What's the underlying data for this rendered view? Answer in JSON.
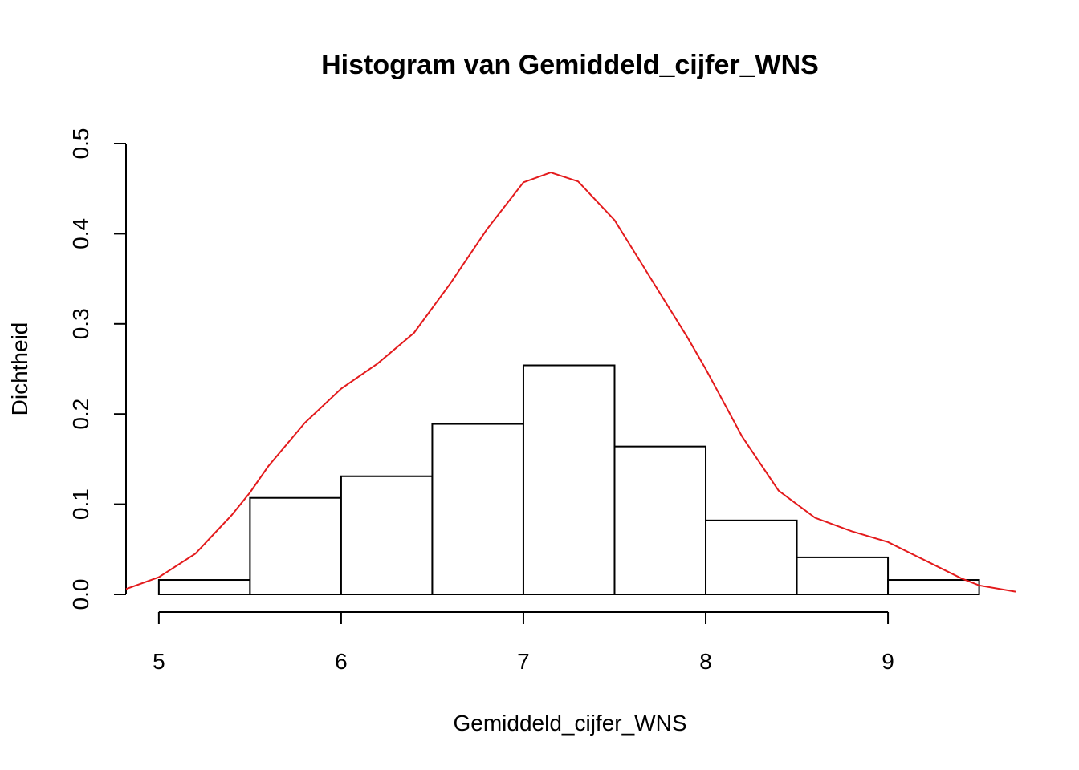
{
  "chart_data": {
    "type": "bar",
    "title": "Histogram van Gemiddeld_cijfer_WNS",
    "xlabel": "Gemiddeld_cijfer_WNS",
    "ylabel": "Dichtheid",
    "xlim": [
      4.82,
      9.7
    ],
    "ylim": [
      0,
      0.5
    ],
    "x_ticks": [
      5,
      6,
      7,
      8,
      9
    ],
    "y_ticks": [
      0.0,
      0.1,
      0.2,
      0.3,
      0.4,
      0.5
    ],
    "x_tick_labels": [
      "5",
      "6",
      "7",
      "8",
      "9"
    ],
    "y_tick_labels": [
      "0.0",
      "0.1",
      "0.2",
      "0.3",
      "0.4",
      "0.5"
    ],
    "bins": [
      {
        "from": 5.0,
        "to": 5.5,
        "density": 0.016
      },
      {
        "from": 5.5,
        "to": 6.0,
        "density": 0.107
      },
      {
        "from": 6.0,
        "to": 6.5,
        "density": 0.131
      },
      {
        "from": 6.5,
        "to": 7.0,
        "density": 0.189
      },
      {
        "from": 7.0,
        "to": 7.5,
        "density": 0.254
      },
      {
        "from": 7.5,
        "to": 8.0,
        "density": 0.164
      },
      {
        "from": 8.0,
        "to": 8.5,
        "density": 0.082
      },
      {
        "from": 8.5,
        "to": 9.0,
        "density": 0.041
      },
      {
        "from": 9.0,
        "to": 9.5,
        "density": 0.016
      }
    ],
    "density_curve": {
      "color": "#e31a1c",
      "points": [
        [
          4.82,
          0.006
        ],
        [
          5.0,
          0.019
        ],
        [
          5.2,
          0.045
        ],
        [
          5.4,
          0.088
        ],
        [
          5.5,
          0.113
        ],
        [
          5.6,
          0.142
        ],
        [
          5.8,
          0.19
        ],
        [
          6.0,
          0.228
        ],
        [
          6.2,
          0.256
        ],
        [
          6.4,
          0.29
        ],
        [
          6.6,
          0.345
        ],
        [
          6.8,
          0.405
        ],
        [
          7.0,
          0.457
        ],
        [
          7.15,
          0.468
        ],
        [
          7.3,
          0.458
        ],
        [
          7.5,
          0.415
        ],
        [
          7.7,
          0.35
        ],
        [
          7.9,
          0.285
        ],
        [
          8.0,
          0.25
        ],
        [
          8.2,
          0.175
        ],
        [
          8.4,
          0.115
        ],
        [
          8.6,
          0.085
        ],
        [
          8.8,
          0.07
        ],
        [
          9.0,
          0.058
        ],
        [
          9.2,
          0.038
        ],
        [
          9.4,
          0.018
        ],
        [
          9.5,
          0.01
        ],
        [
          9.7,
          0.003
        ]
      ]
    },
    "grid": false,
    "legend": "none"
  }
}
